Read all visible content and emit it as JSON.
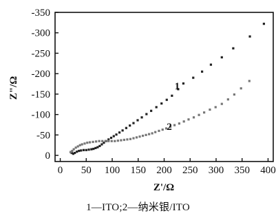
{
  "chart_data": {
    "type": "scatter",
    "xlabel": "Z'/Ω",
    "ylabel": "Z\"/Ω",
    "xlim": [
      -10,
      410
    ],
    "ylim": [
      15,
      -350
    ],
    "y_inverted": true,
    "xticks": [
      0,
      50,
      100,
      150,
      200,
      250,
      300,
      350,
      400
    ],
    "yticks": [
      0,
      -50,
      -100,
      -150,
      -200,
      -250,
      -300,
      -350
    ],
    "grid": false,
    "series": [
      {
        "name": "1",
        "color": "#222222",
        "points": [
          [
            20,
            -8
          ],
          [
            22,
            -6
          ],
          [
            25,
            -4
          ],
          [
            28,
            -6
          ],
          [
            32,
            -9
          ],
          [
            36,
            -11
          ],
          [
            40,
            -12
          ],
          [
            45,
            -13
          ],
          [
            50,
            -13
          ],
          [
            55,
            -14
          ],
          [
            60,
            -15
          ],
          [
            64,
            -16
          ],
          [
            68,
            -18
          ],
          [
            72,
            -20
          ],
          [
            76,
            -23
          ],
          [
            80,
            -27
          ],
          [
            84,
            -31
          ],
          [
            88,
            -35
          ],
          [
            93,
            -39
          ],
          [
            98,
            -43
          ],
          [
            103,
            -47
          ],
          [
            108,
            -51
          ],
          [
            114,
            -56
          ],
          [
            120,
            -61
          ],
          [
            127,
            -67
          ],
          [
            134,
            -73
          ],
          [
            141,
            -79
          ],
          [
            149,
            -86
          ],
          [
            157,
            -93
          ],
          [
            166,
            -101
          ],
          [
            175,
            -109
          ],
          [
            185,
            -118
          ],
          [
            195,
            -127
          ],
          [
            205,
            -136
          ],
          [
            215,
            -146
          ],
          [
            227,
            -162
          ],
          [
            237,
            -176
          ],
          [
            256,
            -190
          ],
          [
            273,
            -205
          ],
          [
            290,
            -222
          ],
          [
            311,
            -240
          ],
          [
            333,
            -262
          ],
          [
            365,
            -291
          ],
          [
            392,
            -322
          ]
        ]
      },
      {
        "name": "2",
        "color": "#777777",
        "points": [
          [
            20,
            -8
          ],
          [
            23,
            -11
          ],
          [
            26,
            -15
          ],
          [
            30,
            -19
          ],
          [
            34,
            -22
          ],
          [
            38,
            -25
          ],
          [
            42,
            -27
          ],
          [
            47,
            -29
          ],
          [
            52,
            -31
          ],
          [
            57,
            -32
          ],
          [
            63,
            -33
          ],
          [
            69,
            -34
          ],
          [
            75,
            -35
          ],
          [
            81,
            -35
          ],
          [
            87,
            -35
          ],
          [
            93,
            -35
          ],
          [
            99,
            -35
          ],
          [
            105,
            -35
          ],
          [
            111,
            -36
          ],
          [
            117,
            -37
          ],
          [
            123,
            -38
          ],
          [
            129,
            -39
          ],
          [
            135,
            -40
          ],
          [
            141,
            -42
          ],
          [
            147,
            -44
          ],
          [
            153,
            -46
          ],
          [
            159,
            -48
          ],
          [
            165,
            -50
          ],
          [
            171,
            -52
          ],
          [
            177,
            -54
          ],
          [
            183,
            -57
          ],
          [
            190,
            -60
          ],
          [
            197,
            -63
          ],
          [
            204,
            -66
          ],
          [
            212,
            -70
          ],
          [
            220,
            -74
          ],
          [
            229,
            -78
          ],
          [
            238,
            -83
          ],
          [
            247,
            -88
          ],
          [
            257,
            -93
          ],
          [
            267,
            -99
          ],
          [
            277,
            -105
          ],
          [
            288,
            -112
          ],
          [
            299,
            -118
          ],
          [
            311,
            -126
          ],
          [
            323,
            -137
          ],
          [
            335,
            -149
          ],
          [
            348,
            -164
          ],
          [
            364,
            -182
          ]
        ]
      }
    ],
    "annotations": [
      {
        "text": "1",
        "x": 225,
        "y": -162
      },
      {
        "text": "2",
        "x": 210,
        "y": -62
      }
    ]
  },
  "caption": "1—ITO;2—纳米银/ITO"
}
